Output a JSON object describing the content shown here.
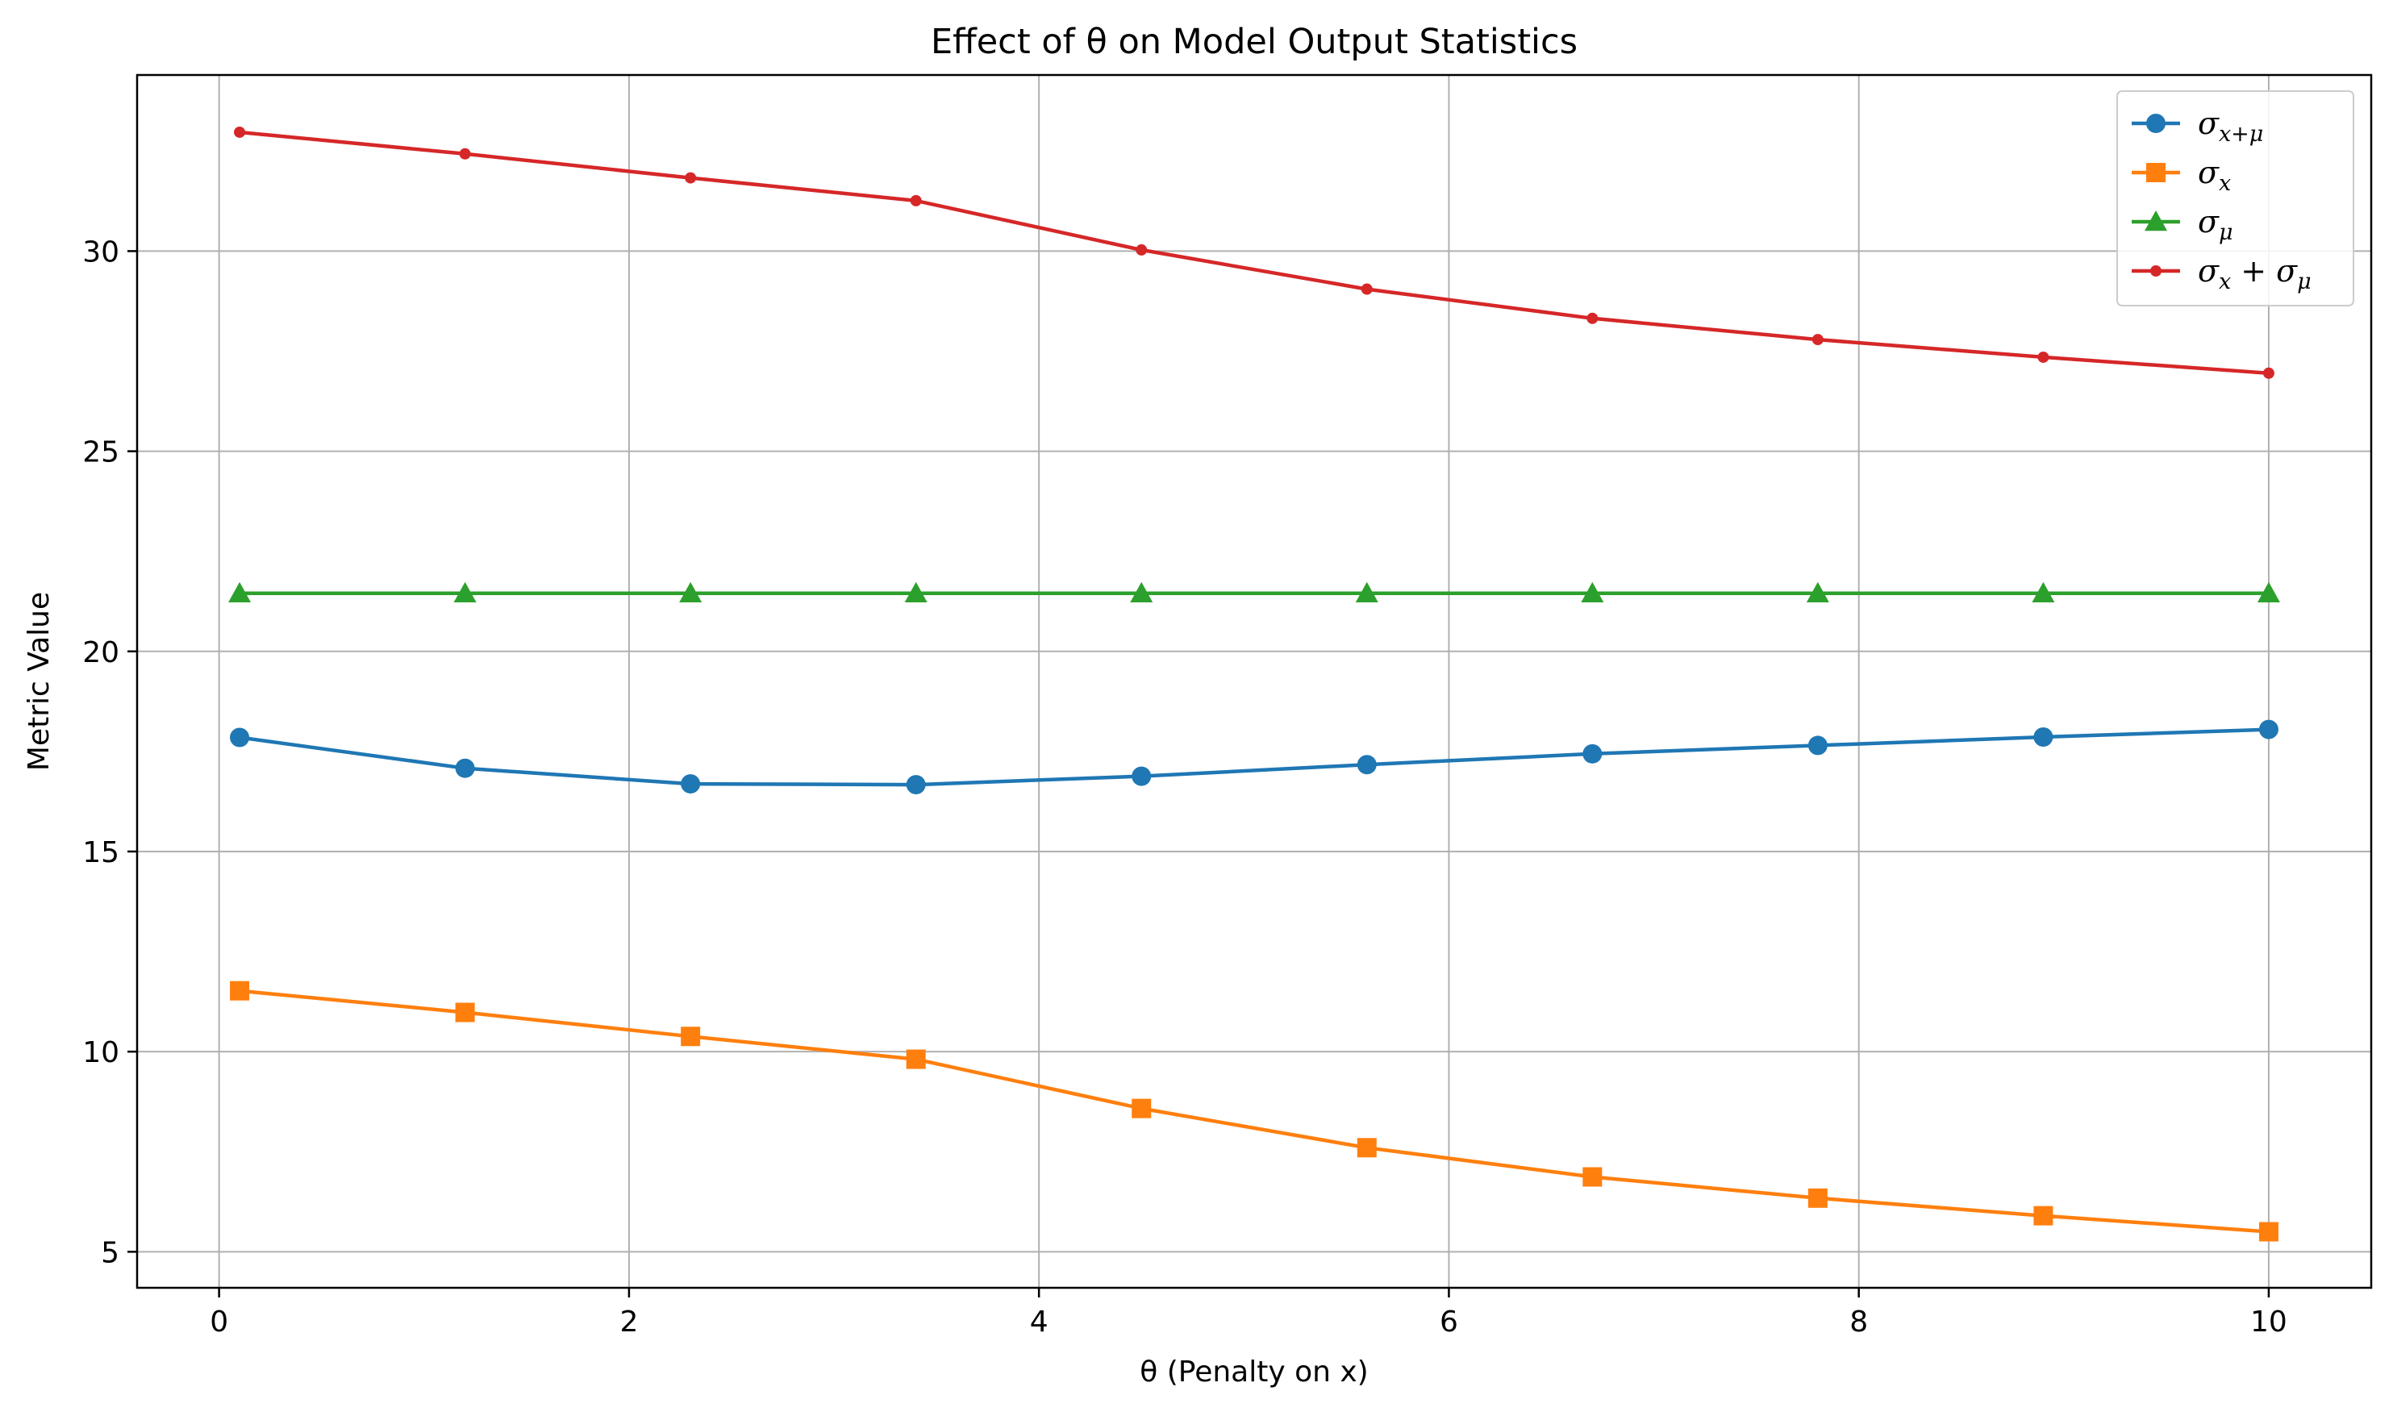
{
  "chart_data": {
    "type": "line",
    "title": "Effect of θ on Model Output Statistics",
    "xlabel": "θ (Penalty on x)",
    "ylabel": "Metric Value",
    "xlim": [
      -0.4,
      10.5
    ],
    "ylim": [
      4.1,
      34.4
    ],
    "xticks": [
      0,
      2,
      4,
      6,
      8,
      10
    ],
    "xtick_labels": [
      "0",
      "2",
      "4",
      "6",
      "8",
      "10"
    ],
    "yticks": [
      5,
      10,
      15,
      20,
      25,
      30
    ],
    "ytick_labels": [
      "5",
      "10",
      "15",
      "20",
      "25",
      "30"
    ],
    "grid": true,
    "legend_position": "top-right",
    "x": [
      0.1,
      1.2,
      2.3,
      3.4,
      4.5,
      5.6,
      6.7,
      7.8,
      8.9,
      10.0
    ],
    "series": [
      {
        "name": "σx+μ",
        "legend_label": "σ_{x+μ}",
        "color": "#1f77b4",
        "marker": "circle",
        "values": [
          17.85,
          17.08,
          16.69,
          16.67,
          16.88,
          17.17,
          17.44,
          17.65,
          17.86,
          18.05
        ]
      },
      {
        "name": "σx",
        "legend_label": "σ_x",
        "color": "#ff7f0e",
        "marker": "square",
        "values": [
          11.52,
          10.98,
          10.38,
          9.81,
          8.58,
          7.6,
          6.87,
          6.34,
          5.9,
          5.5
        ]
      },
      {
        "name": "σμ",
        "legend_label": "σ_μ",
        "color": "#2ca02c",
        "marker": "triangle",
        "values": [
          21.45,
          21.45,
          21.45,
          21.45,
          21.45,
          21.45,
          21.45,
          21.45,
          21.45,
          21.45
        ]
      },
      {
        "name": "σx + σμ",
        "legend_label": "σ_x + σ_μ",
        "color": "#d62728",
        "marker": "small-circle",
        "values": [
          32.97,
          32.43,
          31.83,
          31.26,
          30.03,
          29.05,
          28.32,
          27.79,
          27.35,
          26.95
        ]
      }
    ]
  }
}
